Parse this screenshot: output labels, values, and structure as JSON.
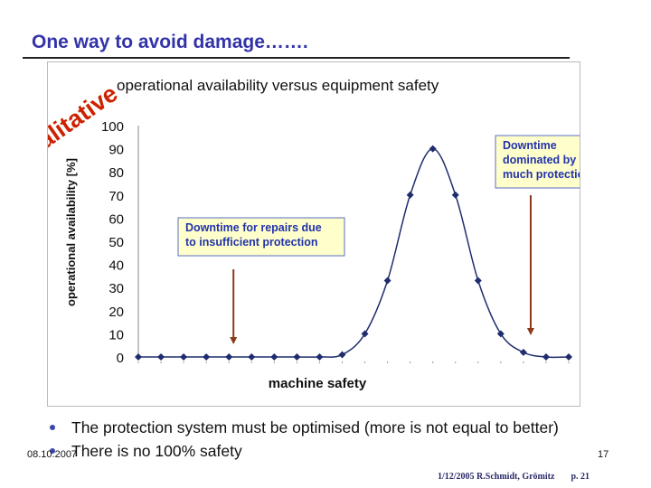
{
  "slide": {
    "title": "One way to avoid damage…….",
    "bullets": [
      "The protection system must be optimised (more is not equal to better)",
      "There is no 100% safety"
    ],
    "date": "08.10.2007",
    "slide_number": "17",
    "footer_text": "1/12/2005 R.Schmidt, Grömitz",
    "footer_page": "p. 21"
  },
  "colors": {
    "title": "#3333aa",
    "curve": "#1f2d6e",
    "qualitative": "#cc2200",
    "arrow": "#8b3a1a",
    "box_fill": "#ffffcc",
    "box_border": "#5a6fc0",
    "box_text": "#2233aa"
  },
  "chart_data": {
    "type": "line",
    "title": "operational availability versus equipment safety",
    "stamp": "Qualitative",
    "xlabel": "machine safety",
    "ylabel": "operational availability [%]",
    "ylim": [
      0,
      100
    ],
    "yticks": [
      "0",
      "10",
      "20",
      "30",
      "40",
      "50",
      "60",
      "70",
      "80",
      "90",
      "100"
    ],
    "grid": false,
    "series": [
      {
        "x": [
          1,
          2,
          3,
          4,
          5,
          6,
          7,
          8,
          9,
          10,
          11,
          12,
          13,
          14,
          15,
          16,
          17,
          18,
          19,
          20
        ],
        "values": [
          0,
          0,
          0,
          0,
          0,
          0,
          0,
          0,
          0,
          1,
          10,
          33,
          70,
          90,
          70,
          33,
          10,
          2,
          0,
          0
        ]
      }
    ],
    "annotations": [
      {
        "text": "Downtime for repairs due to insufficient protection",
        "lines": [
          "Downtime for repairs due",
          "to insufficient protection"
        ],
        "arrow_x": 5
      },
      {
        "text": "Downtime dominated by too much protection",
        "lines": [
          "Downtime",
          "dominated by too",
          "much protection"
        ],
        "arrow_x": 19
      }
    ]
  }
}
